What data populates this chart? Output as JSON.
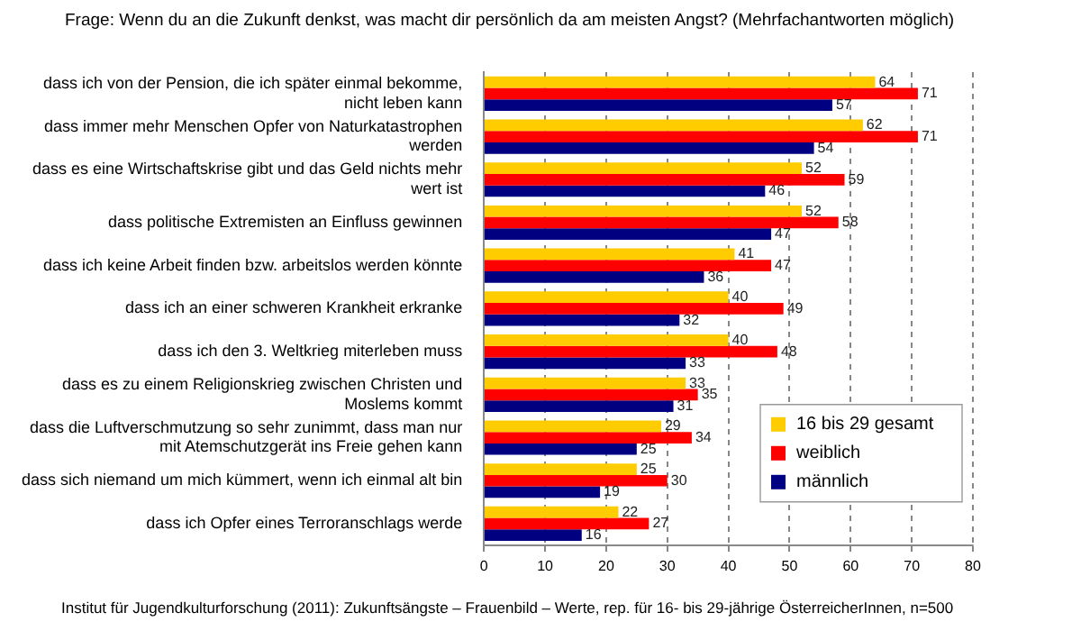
{
  "chart_data": {
    "type": "bar",
    "orientation": "horizontal",
    "title": "Frage: Wenn du an die Zukunft denkst, was macht dir persönlich da am meisten Angst? (Mehrfachantworten möglich)",
    "annotations": [
      "Institut für Jugendkulturforschung (2011): Zukunftsängste – Frauenbild – Werte, rep. für 16- bis 29-jährige ÖsterreicherInnen, n=500"
    ],
    "categories": [
      "dass ich von der Pension, die ich später einmal bekomme, nicht leben kann",
      "dass immer mehr Menschen Opfer von Naturkatastrophen werden",
      "dass es eine Wirtschaftskrise gibt und das Geld nichts mehr wert ist",
      "dass politische Extremisten an Einfluss gewinnen",
      "dass ich keine Arbeit finden bzw. arbeitslos werden könnte",
      "dass ich an einer schweren Krankheit erkranke",
      "dass ich den 3. Weltkrieg miterleben muss",
      "dass es zu einem Religionskrieg zwischen Christen und Moslems kommt",
      "dass die Luftverschmutzung so sehr zunimmt, dass man nur mit Atemschutzgerät ins Freie gehen kann",
      "dass sich niemand um mich kümmert, wenn ich einmal alt bin",
      "dass ich Opfer eines Terroranschlags werde"
    ],
    "series": [
      {
        "name": "16 bis 29 gesamt",
        "color": "#ffcc00",
        "values": [
          64,
          62,
          52,
          52,
          41,
          40,
          40,
          33,
          29,
          25,
          22
        ]
      },
      {
        "name": "weiblich",
        "color": "#ff0000",
        "values": [
          71,
          71,
          59,
          58,
          47,
          49,
          48,
          35,
          34,
          30,
          27
        ]
      },
      {
        "name": "männlich",
        "color": "#000080",
        "values": [
          57,
          54,
          46,
          47,
          36,
          32,
          33,
          31,
          25,
          19,
          16
        ]
      }
    ],
    "xlim": [
      0,
      80
    ],
    "xticks": [
      0,
      10,
      20,
      30,
      40,
      50,
      60,
      70,
      80
    ],
    "grid": "x",
    "legend": "bottom right",
    "data_labels": true
  }
}
